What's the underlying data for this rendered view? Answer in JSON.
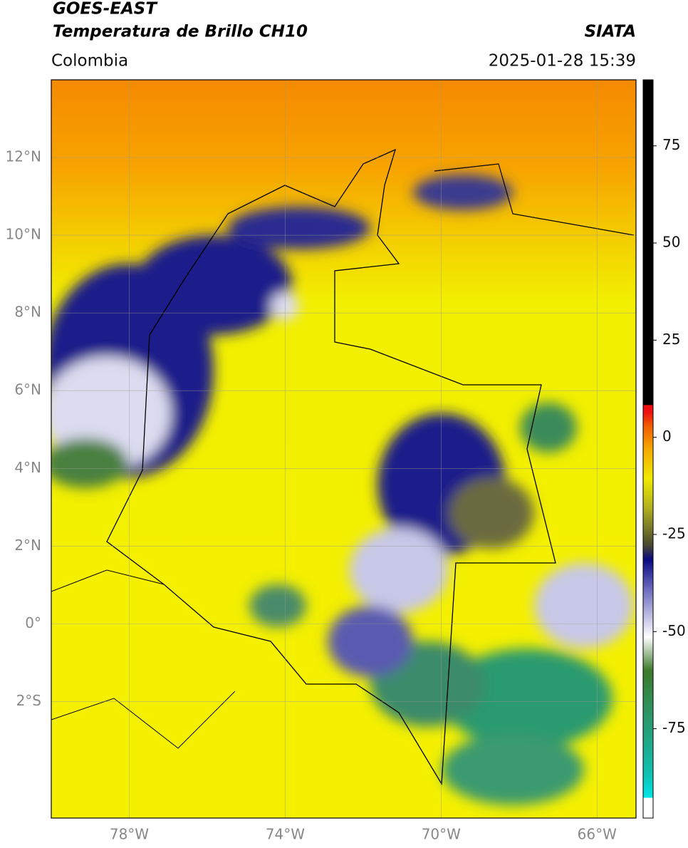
{
  "header": {
    "title": "GOES-EAST",
    "subtitle": "Temperatura de Brillo CH10",
    "source": "SIATA",
    "region": "Colombia",
    "timestamp": "2025-01-28 15:39"
  },
  "map": {
    "xlim": [
      -80,
      -65
    ],
    "ylim": [
      -5,
      14
    ],
    "xticks": [
      {
        "value": -78,
        "label": "78°W"
      },
      {
        "value": -74,
        "label": "74°W"
      },
      {
        "value": -70,
        "label": "70°W"
      },
      {
        "value": -66,
        "label": "66°W"
      }
    ],
    "yticks": [
      {
        "value": -2,
        "label": "2°S"
      },
      {
        "value": 0,
        "label": "0°"
      },
      {
        "value": 2,
        "label": "2°N"
      },
      {
        "value": 4,
        "label": "4°N"
      },
      {
        "value": 6,
        "label": "6°N"
      },
      {
        "value": 8,
        "label": "8°N"
      },
      {
        "value": 10,
        "label": "10°N"
      },
      {
        "value": 12,
        "label": "12°N"
      }
    ],
    "grid": true
  },
  "colorbar": {
    "lim": [
      -98,
      92
    ],
    "ticks": [
      75,
      50,
      25,
      0,
      -25,
      -50,
      -75
    ]
  }
}
